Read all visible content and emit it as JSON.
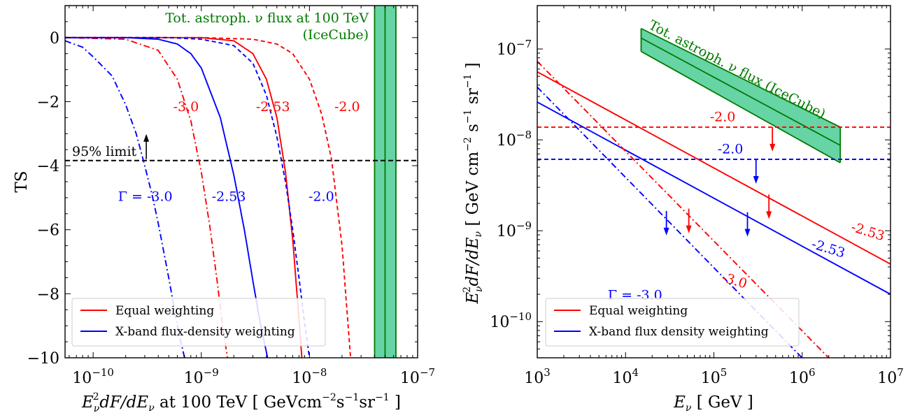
{
  "colors": {
    "equal": "#ff0000",
    "xband": "#0000ff",
    "icecube_line": "#007a00",
    "icecube_fill": "#66d4a4",
    "limit": "#000000"
  },
  "chart_data": [
    {
      "type": "line",
      "xscale": "log",
      "yscale": "linear",
      "xlim": [
        5.5e-11,
        1e-07
      ],
      "ylim": [
        -10,
        1
      ],
      "ylabel": "TS",
      "xlabel_parts": [
        "E",
        "ν",
        "2",
        "dF/dE",
        "ν",
        " at 100 TeV  [ GeVcm",
        "−2",
        "s",
        "−1",
        "sr",
        "−1",
        " ]"
      ],
      "xticks": [
        {
          "value": 1e-10,
          "base": "10",
          "exp": "−10"
        },
        {
          "value": 1e-09,
          "base": "10",
          "exp": "−9"
        },
        {
          "value": 1e-08,
          "base": "10",
          "exp": "−8"
        },
        {
          "value": 1e-07,
          "base": "10",
          "exp": "−7"
        }
      ],
      "yticks": [
        {
          "value": 0,
          "label": "0"
        },
        {
          "value": -2,
          "label": "−2"
        },
        {
          "value": -4,
          "label": "−4"
        },
        {
          "value": -6,
          "label": "−6"
        },
        {
          "value": -8,
          "label": "−8"
        },
        {
          "value": -10,
          "label": "−10"
        }
      ],
      "series": [
        {
          "weighting": "equal",
          "index": -2.0,
          "style": "dashed",
          "x": [
            5.5e-11,
            1e-09,
            3e-09,
            5e-09,
            7e-09,
            1e-08,
            1.3e-08,
            1.6e-08,
            2e-08,
            2.4e-08
          ],
          "y": [
            0,
            0,
            -0.05,
            -0.2,
            -0.5,
            -1.3,
            -2.4,
            -3.8,
            -6.5,
            -10
          ]
        },
        {
          "weighting": "equal",
          "index": -2.53,
          "style": "solid",
          "x": [
            5.5e-11,
            1e-09,
            2e-09,
            3e-09,
            4e-09,
            5e-09,
            6e-09,
            7e-09,
            8e-09,
            8.5e-09
          ],
          "y": [
            0,
            0,
            -0.1,
            -0.5,
            -1.3,
            -2.5,
            -4.2,
            -6.3,
            -8.8,
            -10
          ]
        },
        {
          "weighting": "equal",
          "index": -3.0,
          "style": "dashdot",
          "x": [
            5.5e-11,
            2e-10,
            4e-10,
            6e-10,
            8e-10,
            1e-09,
            1.2e-09,
            1.4e-09,
            1.6e-09,
            1.75e-09
          ],
          "y": [
            0,
            -0.05,
            -0.4,
            -1.3,
            -2.6,
            -4.2,
            -5.9,
            -7.6,
            -9.2,
            -10
          ]
        },
        {
          "weighting": "xband",
          "index": -2.0,
          "style": "dashed",
          "x": [
            5.5e-11,
            5e-10,
            1e-09,
            2e-09,
            3e-09,
            4e-09,
            5e-09,
            6e-09,
            7e-09,
            8e-09,
            9e-09,
            1e-08
          ],
          "y": [
            0,
            0,
            -0.05,
            -0.25,
            -0.8,
            -1.8,
            -3.1,
            -4.5,
            -6.0,
            -7.5,
            -8.9,
            -10
          ]
        },
        {
          "weighting": "xband",
          "index": -2.53,
          "style": "solid",
          "x": [
            5.5e-11,
            2e-10,
            4e-10,
            6e-10,
            8e-10,
            1e-09,
            1.5e-09,
            2e-09,
            2.5e-09,
            3e-09,
            3.5e-09,
            4.1e-09
          ],
          "y": [
            0,
            0,
            -0.05,
            -0.2,
            -0.5,
            -0.95,
            -2.5,
            -4.3,
            -6.0,
            -7.6,
            -8.9,
            -10
          ]
        },
        {
          "weighting": "xband",
          "index": -3.0,
          "style": "dashdot",
          "x": [
            5.5e-11,
            8e-11,
            1e-10,
            1.5e-10,
            2e-10,
            2.5e-10,
            3e-10,
            3.5e-10,
            4e-10,
            5e-10,
            6e-10,
            7e-10
          ],
          "y": [
            -0.1,
            -0.3,
            -0.6,
            -1.2,
            -2.1,
            -3.0,
            -4.0,
            -4.9,
            -5.8,
            -7.5,
            -9.0,
            -10
          ]
        }
      ],
      "limit": {
        "value": -3.84,
        "label": "95% limit",
        "arrow_at_x": 3.1e-10
      },
      "icecube_band": {
        "low": 4e-08,
        "center": 5e-08,
        "high": 6.3e-08,
        "label_line1": "Tot. astroph. ν flux at 100 TeV",
        "label_line2": "(IceCube)"
      },
      "annotations": [
        {
          "text": "-3.0",
          "color": "equal",
          "x": 5.5e-10,
          "y": -2.3
        },
        {
          "text": "-2.53",
          "color": "equal",
          "x": 3.2e-09,
          "y": -2.3
        },
        {
          "text": "-2.0",
          "color": "equal",
          "x": 1.7e-08,
          "y": -2.3
        },
        {
          "text": "Γ = -3.0",
          "color": "xband",
          "x": 1.7e-10,
          "y": -5.1
        },
        {
          "text": "-2.53",
          "color": "xband",
          "x": 1.25e-09,
          "y": -5.1
        },
        {
          "text": "-2.0",
          "color": "xband",
          "x": 9.8e-09,
          "y": -5.1
        }
      ],
      "legend": {
        "position": "lower-left",
        "entries": [
          {
            "label": "Equal weighting",
            "color": "equal"
          },
          {
            "label": "X-band flux-density weighting",
            "color": "xband"
          }
        ]
      }
    },
    {
      "type": "line",
      "xscale": "log",
      "yscale": "log",
      "xlim": [
        1000,
        10000000
      ],
      "ylim": [
        4e-11,
        3e-07
      ],
      "xlabel_parts": [
        "E",
        "ν",
        "  [ GeV ]"
      ],
      "ylabel_parts": [
        "E",
        "ν",
        "2",
        "dF/dE",
        "ν",
        "  [ GeV cm",
        "−2",
        " s",
        "−1",
        " sr",
        "−1",
        " ]"
      ],
      "xticks": [
        {
          "value": 1000,
          "base": "10",
          "exp": "3"
        },
        {
          "value": 10000,
          "base": "10",
          "exp": "4"
        },
        {
          "value": 100000,
          "base": "10",
          "exp": "5"
        },
        {
          "value": 1000000,
          "base": "10",
          "exp": "6"
        },
        {
          "value": 10000000,
          "base": "10",
          "exp": "7"
        }
      ],
      "yticks": [
        {
          "value": 1e-10,
          "base": "10",
          "exp": "−10"
        },
        {
          "value": 1e-09,
          "base": "10",
          "exp": "−9"
        },
        {
          "value": 1e-08,
          "base": "10",
          "exp": "−8"
        },
        {
          "value": 1e-07,
          "base": "10",
          "exp": "−7"
        }
      ],
      "series": [
        {
          "weighting": "equal",
          "index": -2.0,
          "style": "dashed",
          "x": [
            1000,
            10000000
          ],
          "y": [
            1.38e-08,
            1.38e-08
          ]
        },
        {
          "weighting": "xband",
          "index": -2.0,
          "style": "dashed",
          "x": [
            1000,
            10000000
          ],
          "y": [
            6.1e-09,
            6.1e-09
          ]
        },
        {
          "weighting": "equal",
          "index": -2.53,
          "style": "solid",
          "x": [
            1000,
            10000000
          ],
          "y": [
            5.6e-08,
            4.3e-10
          ]
        },
        {
          "weighting": "xband",
          "index": -2.53,
          "style": "solid",
          "x": [
            1000,
            10000000
          ],
          "y": [
            2.6e-08,
            2e-10
          ]
        },
        {
          "weighting": "equal",
          "index": -3.0,
          "style": "dashdot",
          "x": [
            1000,
            2100000
          ],
          "y": [
            7.3e-08,
            3.8e-11
          ]
        },
        {
          "weighting": "xband",
          "index": -3.0,
          "style": "dashdot",
          "x": [
            1000,
            1050000
          ],
          "y": [
            3.8e-08,
            3.8e-11
          ]
        }
      ],
      "upper_limit_arrows": [
        {
          "color": "equal",
          "x": 460000,
          "y": 1.38e-08
        },
        {
          "color": "xband",
          "x": 300000,
          "y": 6.1e-09
        },
        {
          "color": "equal",
          "x": 420000,
          "y": 2.5e-09
        },
        {
          "color": "xband",
          "x": 240000,
          "y": 1.6e-09
        },
        {
          "color": "equal",
          "x": 52000,
          "y": 1.75e-09
        },
        {
          "color": "xband",
          "x": 29000,
          "y": 1.65e-09
        }
      ],
      "icecube_band": {
        "x": [
          15000,
          2700000
        ],
        "low": [
          9.4e-08,
          5.6e-09
        ],
        "center": [
          1.32e-07,
          8.7e-09
        ],
        "high": [
          1.68e-07,
          1.38e-08
        ],
        "label": "Tot. astroph. ν flux (IceCube)"
      },
      "annotations": [
        {
          "text": "-2.0",
          "color": "equal",
          "x": 90000,
          "y": 1.6e-08
        },
        {
          "text": "-2.0",
          "color": "xband",
          "x": 110000,
          "y": 7.1e-09
        },
        {
          "text": "-2.53",
          "color": "equal",
          "x": 3500000,
          "y": 1e-09,
          "rotate": 17
        },
        {
          "text": "-2.53",
          "color": "xband",
          "x": 1250000,
          "y": 6.5e-10,
          "rotate": 17
        },
        {
          "text": "-3.0",
          "color": "equal",
          "x": 120000,
          "y": 2.8e-10,
          "rotate": 17
        },
        {
          "text": "Γ =  -3.0",
          "color": "xband",
          "x": 6300,
          "y": 1.75e-10
        }
      ],
      "legend": {
        "position": "lower-left",
        "entries": [
          {
            "label": "Equal weighting",
            "color": "equal"
          },
          {
            "label": "X-band flux density weighting",
            "color": "xband"
          }
        ]
      }
    }
  ]
}
